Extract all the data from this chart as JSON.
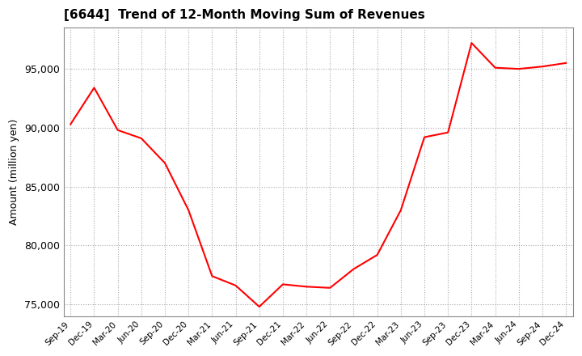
{
  "title": "[6644]  Trend of 12-Month Moving Sum of Revenues",
  "ylabel": "Amount (million yen)",
  "line_color": "#FF0000",
  "line_width": 1.5,
  "background_color": "#FFFFFF",
  "ylim": [
    74000,
    98500
  ],
  "yticks": [
    75000,
    80000,
    85000,
    90000,
    95000
  ],
  "x_labels": [
    "Sep-19",
    "Dec-19",
    "Mar-20",
    "Jun-20",
    "Sep-20",
    "Dec-20",
    "Mar-21",
    "Jun-21",
    "Sep-21",
    "Dec-21",
    "Mar-22",
    "Jun-22",
    "Sep-22",
    "Dec-22",
    "Mar-23",
    "Jun-23",
    "Sep-23",
    "Dec-23",
    "Mar-24",
    "Jun-24",
    "Sep-24",
    "Dec-24"
  ],
  "values": [
    90300,
    93400,
    89800,
    89100,
    87000,
    83000,
    77400,
    76600,
    74800,
    76700,
    76500,
    76400,
    78000,
    79200,
    83000,
    89200,
    89600,
    97200,
    95100,
    95000,
    95200,
    95500
  ]
}
